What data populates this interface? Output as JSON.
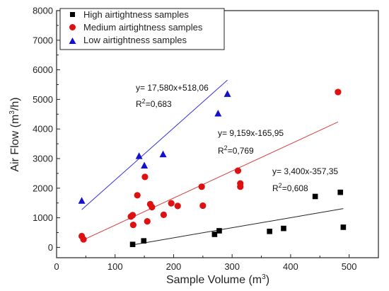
{
  "chart_data": {
    "type": "scatter",
    "xlabel": "Sample Volume (m",
    "xlabel_sup": "3",
    "xlabel_end": ")",
    "ylabel": "Air Flow (m",
    "ylabel_sup": "3",
    "ylabel_end": "/h)",
    "xlim": [
      0,
      550
    ],
    "ylim": [
      -350,
      8000
    ],
    "xticks": [
      0,
      100,
      200,
      300,
      400,
      500
    ],
    "yticks": [
      0,
      1000,
      2000,
      3000,
      4000,
      5000,
      6000,
      7000,
      8000
    ],
    "grid": false,
    "legend_position": "top-left",
    "series": [
      {
        "name": "High airtightness samples",
        "marker": "square",
        "color": "#000000",
        "points": [
          [
            130,
            100
          ],
          [
            149,
            220
          ],
          [
            270,
            440
          ],
          [
            278,
            560
          ],
          [
            364,
            540
          ],
          [
            388,
            640
          ],
          [
            442,
            1720
          ],
          [
            485,
            1860
          ],
          [
            490,
            680
          ]
        ],
        "fit": {
          "equation": "y= 3,400x-357,35",
          "r2_label": "R",
          "r2_sup": "2",
          "r2_value": "=0,608",
          "line_color": "#222222",
          "x_range": [
            130,
            490
          ],
          "slope": 3.4,
          "intercept": -357.35
        }
      },
      {
        "name": "Medium airtightness samples",
        "marker": "circle",
        "color": "#dd1111",
        "points": [
          [
            43,
            380
          ],
          [
            46,
            270
          ],
          [
            127,
            1040
          ],
          [
            130,
            1090
          ],
          [
            131,
            760
          ],
          [
            138,
            1760
          ],
          [
            151,
            2380
          ],
          [
            155,
            880
          ],
          [
            160,
            1460
          ],
          [
            163,
            1360
          ],
          [
            183,
            1100
          ],
          [
            196,
            1490
          ],
          [
            207,
            1400
          ],
          [
            248,
            2050
          ],
          [
            250,
            1410
          ],
          [
            310,
            2590
          ],
          [
            314,
            2160
          ],
          [
            314,
            2050
          ],
          [
            481,
            5250
          ]
        ],
        "fit": {
          "equation": "y= 9,159x-165,95",
          "r2_label": "R",
          "r2_sup": "2",
          "r2_value": "=0,769",
          "line_color": "#d84040",
          "x_range": [
            43,
            481
          ],
          "slope": 9.159,
          "intercept": -165.95
        }
      },
      {
        "name": "Low airtightness samples",
        "marker": "triangle",
        "color": "#1212cc",
        "points": [
          [
            43,
            1570
          ],
          [
            141,
            3080
          ],
          [
            150,
            2760
          ],
          [
            182,
            3140
          ],
          [
            276,
            4520
          ],
          [
            292,
            5180
          ]
        ],
        "fit": {
          "equation": "y= 17,580x+518,06",
          "r2_label": "R",
          "r2_sup": "2",
          "r2_value": "=0,683",
          "line_color": "#3434dd",
          "x_range": [
            43,
            292
          ],
          "slope": 17.58,
          "intercept": 518.06
        }
      }
    ]
  }
}
